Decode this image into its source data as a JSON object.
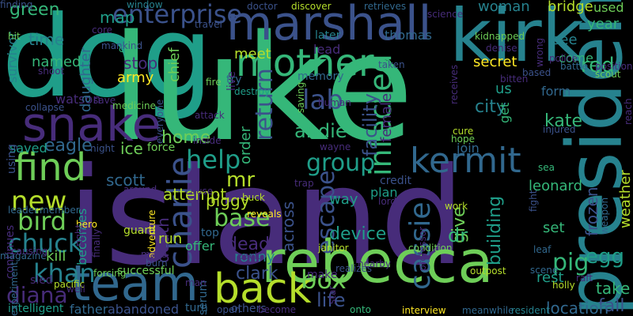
{
  "palette": {
    "background": "#000000",
    "dark_purple": "#472c7a",
    "indigo": "#3b528b",
    "blue": "#31688e",
    "teal": "#26828e",
    "sea_green": "#1f9e89",
    "green": "#35b779",
    "lime": "#6ece58",
    "yellow_green": "#b5de2b",
    "yellow": "#fde725"
  },
  "words": [
    {
      "text": "dog",
      "color": "#1f9e89"
    },
    {
      "text": "luke",
      "color": "#35b779"
    },
    {
      "text": "island",
      "color": "#472c7a"
    },
    {
      "text": "kirk",
      "color": "#26828e"
    },
    {
      "text": "rebecca",
      "color": "#6ece58"
    },
    {
      "text": "marshall",
      "color": "#3b528b"
    },
    {
      "text": "snake",
      "color": "#472c7a"
    },
    {
      "text": "team",
      "color": "#31688e"
    },
    {
      "text": "president",
      "color": "#26828e"
    },
    {
      "text": "kermit",
      "color": "#31688e"
    },
    {
      "text": "mother",
      "color": "#35b779"
    },
    {
      "text": "find",
      "color": "#6ece58"
    },
    {
      "text": "back",
      "color": "#b5de2b"
    },
    {
      "text": "charlie",
      "color": "#3b528b"
    },
    {
      "text": "enterprise",
      "color": "#3b528b"
    },
    {
      "text": "infected",
      "color": "#35b779"
    },
    {
      "text": "cassie",
      "color": "#31688e"
    },
    {
      "text": "return",
      "color": "#3b528b"
    },
    {
      "text": "escape",
      "color": "#3b528b"
    },
    {
      "text": "group",
      "color": "#1f9e89"
    },
    {
      "text": "lab",
      "color": "#3b528b"
    },
    {
      "text": "help",
      "color": "#1f9e89"
    },
    {
      "text": "new",
      "color": "#b5de2b"
    },
    {
      "text": "bird",
      "color": "#6ece58"
    },
    {
      "text": "chuck",
      "color": "#26828e"
    },
    {
      "text": "khan",
      "color": "#26828e"
    },
    {
      "text": "diana",
      "color": "#472c7a"
    },
    {
      "text": "base",
      "color": "#6ece58"
    },
    {
      "text": "pig",
      "color": "#35b779"
    },
    {
      "text": "mr",
      "color": "#b5de2b"
    },
    {
      "text": "box",
      "color": "#6ece58"
    },
    {
      "text": "egg",
      "color": "#1f9e89"
    },
    {
      "text": "red",
      "color": "#35b779"
    },
    {
      "text": "death",
      "color": "#472c7a"
    },
    {
      "text": "andie",
      "color": "#35b779"
    },
    {
      "text": "facility",
      "color": "#3b528b"
    },
    {
      "text": "female",
      "color": "#472c7a"
    },
    {
      "text": "city",
      "color": "#26828e"
    },
    {
      "text": "frozen",
      "color": "#3b528b"
    },
    {
      "text": "kate",
      "color": "#35b779"
    },
    {
      "text": "weather",
      "color": "#b5de2b"
    },
    {
      "text": "give",
      "color": "#6ece58"
    },
    {
      "text": "dr",
      "color": "#35b779"
    },
    {
      "text": "device",
      "color": "#1f9e89"
    },
    {
      "text": "building",
      "color": "#1f9e89"
    },
    {
      "text": "leonard",
      "color": "#35b779"
    },
    {
      "text": "set",
      "color": "#35b779"
    },
    {
      "text": "rest",
      "color": "#1f9e89"
    },
    {
      "text": "take",
      "color": "#35b779"
    },
    {
      "text": "fall",
      "color": "#3b528b"
    },
    {
      "text": "location",
      "color": "#31688e"
    },
    {
      "text": "life",
      "color": "#3b528b"
    },
    {
      "text": "clark",
      "color": "#3b528b"
    },
    {
      "text": "dead",
      "color": "#472c7a"
    },
    {
      "text": "ronny",
      "color": "#26828e"
    },
    {
      "text": "piggy",
      "color": "#b5de2b"
    },
    {
      "text": "scott",
      "color": "#31688e"
    },
    {
      "text": "attempt",
      "color": "#b5de2b"
    },
    {
      "text": "home",
      "color": "#6ece58"
    },
    {
      "text": "ice",
      "color": "#6ece58"
    },
    {
      "text": "eagle",
      "color": "#31688e"
    },
    {
      "text": "saved",
      "color": "#1f9e89"
    },
    {
      "text": "using",
      "color": "#3b528b"
    },
    {
      "text": "survivor",
      "color": "#26828e"
    },
    {
      "text": "named",
      "color": "#35b779"
    },
    {
      "text": "watson",
      "color": "#472c7a"
    },
    {
      "text": "green",
      "color": "#35b779"
    },
    {
      "text": "time",
      "color": "#26828e"
    },
    {
      "text": "map",
      "color": "#1f9e89"
    },
    {
      "text": "stop",
      "color": "#472c7a"
    },
    {
      "text": "army",
      "color": "#fde725"
    },
    {
      "text": "chief",
      "color": "#6ece58"
    },
    {
      "text": "daughter",
      "color": "#31688e"
    },
    {
      "text": "meet",
      "color": "#b5de2b"
    },
    {
      "text": "lead",
      "color": "#472c7a"
    },
    {
      "text": "memory",
      "color": "#31688e"
    },
    {
      "text": "thomas",
      "color": "#31688e"
    },
    {
      "text": "later",
      "color": "#26828e"
    },
    {
      "text": "secret",
      "color": "#fde725"
    },
    {
      "text": "woman",
      "color": "#26828e"
    },
    {
      "text": "bridge",
      "color": "#b5de2b"
    },
    {
      "text": "used",
      "color": "#6ece58"
    },
    {
      "text": "year",
      "color": "#35b779"
    },
    {
      "text": "see",
      "color": "#26828e"
    },
    {
      "text": "come",
      "color": "#35b779"
    },
    {
      "text": "form",
      "color": "#31688e"
    },
    {
      "text": "us",
      "color": "#1f9e89"
    },
    {
      "text": "get",
      "color": "#35b779"
    },
    {
      "text": "join",
      "color": "#31688e"
    },
    {
      "text": "plan",
      "color": "#1f9e89"
    },
    {
      "text": "way",
      "color": "#1f9e89"
    },
    {
      "text": "credit",
      "color": "#3b528b"
    },
    {
      "text": "across",
      "color": "#3b528b"
    },
    {
      "text": "order",
      "color": "#35b779"
    },
    {
      "text": "try",
      "color": "#31688e"
    },
    {
      "text": "live",
      "color": "#472c7a"
    },
    {
      "text": "run",
      "color": "#b5de2b"
    },
    {
      "text": "offer",
      "color": "#35b779"
    },
    {
      "text": "top",
      "color": "#31688e"
    },
    {
      "text": "kill",
      "color": "#6ece58"
    },
    {
      "text": "becomes",
      "color": "#1f9e89"
    },
    {
      "text": "continues",
      "color": "#472c7a"
    },
    {
      "text": "make",
      "color": "#472c7a"
    },
    {
      "text": "others",
      "color": "#3b528b"
    },
    {
      "text": "serum",
      "color": "#31688e"
    },
    {
      "text": "turn",
      "color": "#31688e"
    },
    {
      "text": "father",
      "color": "#31688e"
    },
    {
      "text": "abandoned",
      "color": "#3b528b"
    },
    {
      "text": "successful",
      "color": "#6ece58"
    },
    {
      "text": "intelligent",
      "color": "#1f9e89"
    },
    {
      "text": "sled",
      "color": "#472c7a"
    },
    {
      "text": "pacific",
      "color": "#b5de2b"
    },
    {
      "text": "magazine",
      "color": "#31688e"
    },
    {
      "text": "forcing",
      "color": "#6ece58"
    },
    {
      "text": "realizes",
      "color": "#3b528b"
    },
    {
      "text": "outpost",
      "color": "#b5de2b"
    },
    {
      "text": "interview",
      "color": "#fde725"
    },
    {
      "text": "meanwhile",
      "color": "#31688e"
    },
    {
      "text": "resident",
      "color": "#26828e"
    },
    {
      "text": "janitor",
      "color": "#b5de2b"
    },
    {
      "text": "condition",
      "color": "#6ece58"
    },
    {
      "text": "nearby",
      "color": "#472c7a"
    },
    {
      "text": "leaf",
      "color": "#31688e"
    },
    {
      "text": "holly",
      "color": "#b5de2b"
    },
    {
      "text": "fight",
      "color": "#3b528b"
    },
    {
      "text": "weapon",
      "color": "#31688e"
    },
    {
      "text": "reach",
      "color": "#472c7a"
    },
    {
      "text": "scout",
      "color": "#6ece58"
    },
    {
      "text": "injured",
      "color": "#3b528b"
    },
    {
      "text": "cure",
      "color": "#b5de2b"
    },
    {
      "text": "hope",
      "color": "#6ece58"
    },
    {
      "text": "sea",
      "color": "#35b779"
    },
    {
      "text": "lord",
      "color": "#472c7a"
    },
    {
      "text": "work",
      "color": "#b5de2b"
    },
    {
      "text": "trap",
      "color": "#472c7a"
    },
    {
      "text": "reveals",
      "color": "#fde725"
    },
    {
      "text": "buck",
      "color": "#b5de2b"
    },
    {
      "text": "guard",
      "color": "#b5de2b"
    },
    {
      "text": "burn",
      "color": "#3b528b"
    },
    {
      "text": "pack",
      "color": "#472c7a"
    },
    {
      "text": "scene",
      "color": "#31688e"
    },
    {
      "text": "raft",
      "color": "#472c7a"
    },
    {
      "text": "adventure",
      "color": "#fde725"
    },
    {
      "text": "man",
      "color": "#472c7a"
    },
    {
      "text": "open",
      "color": "#3b528b"
    },
    {
      "text": "become",
      "color": "#472c7a"
    },
    {
      "text": "star",
      "color": "#472c7a"
    },
    {
      "text": "onto",
      "color": "#35b779"
    },
    {
      "text": "professor",
      "color": "#472c7a"
    },
    {
      "text": "hero",
      "color": "#fde725"
    },
    {
      "text": "leader",
      "color": "#31688e"
    },
    {
      "text": "member",
      "color": "#31688e"
    },
    {
      "text": "causing",
      "color": "#472c7a"
    },
    {
      "text": "night",
      "color": "#3b528b"
    },
    {
      "text": "force",
      "color": "#6ece58"
    },
    {
      "text": "inside",
      "color": "#472c7a"
    },
    {
      "text": "everyone",
      "color": "#3b528b"
    },
    {
      "text": "medicine",
      "color": "#6ece58"
    },
    {
      "text": "cliff",
      "color": "#35b779"
    },
    {
      "text": "save",
      "color": "#472c7a"
    },
    {
      "text": "collapse",
      "color": "#3b528b"
    },
    {
      "text": "shoot",
      "color": "#472c7a"
    },
    {
      "text": "hit",
      "color": "#6ece58"
    },
    {
      "text": "core",
      "color": "#472c7a"
    },
    {
      "text": "mankind",
      "color": "#3b528b"
    },
    {
      "text": "window",
      "color": "#26828e"
    },
    {
      "text": "travel",
      "color": "#3b528b"
    },
    {
      "text": "fire",
      "color": "#6ece58"
    },
    {
      "text": "attack",
      "color": "#472c7a"
    },
    {
      "text": "destroy",
      "color": "#1f9e89"
    },
    {
      "text": "saving",
      "color": "#6ece58"
    },
    {
      "text": "human",
      "color": "#472c7a"
    },
    {
      "text": "doctor",
      "color": "#3b528b"
    },
    {
      "text": "discover",
      "color": "#b5de2b"
    },
    {
      "text": "retrieves",
      "color": "#31688e"
    },
    {
      "text": "science",
      "color": "#472c7a"
    },
    {
      "text": "taken",
      "color": "#3b528b"
    },
    {
      "text": "kidnapped",
      "color": "#6ece58"
    },
    {
      "text": "denise",
      "color": "#472c7a"
    },
    {
      "text": "wrong",
      "color": "#472c7a"
    },
    {
      "text": "based",
      "color": "#3b528b"
    },
    {
      "text": "bitten",
      "color": "#472c7a"
    },
    {
      "text": "police",
      "color": "#472c7a"
    },
    {
      "text": "battle",
      "color": "#31688e"
    },
    {
      "text": "position",
      "color": "#472c7a"
    },
    {
      "text": "receives",
      "color": "#472c7a"
    },
    {
      "text": "wayne",
      "color": "#472c7a"
    },
    {
      "text": "cause",
      "color": "#472c7a"
    },
    {
      "text": "around",
      "color": "#472c7a"
    },
    {
      "text": "maya",
      "color": "#472c7a"
    },
    {
      "text": "experiment",
      "color": "#31688e"
    },
    {
      "text": "well",
      "color": "#472c7a"
    },
    {
      "text": "finally",
      "color": "#472c7a"
    },
    {
      "text": "right",
      "color": "#472c7a"
    },
    {
      "text": "finding",
      "color": "#3b528b"
    }
  ]
}
